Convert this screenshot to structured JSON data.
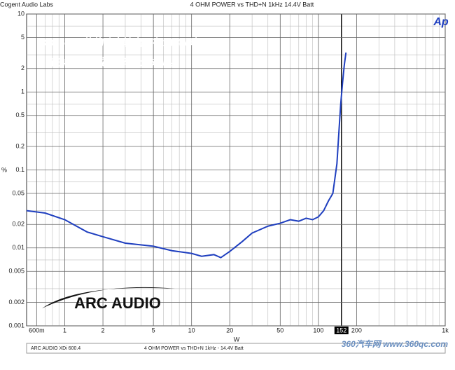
{
  "chart_data": {
    "type": "line",
    "log_scale": true,
    "grid": true,
    "header_left": "Cogent Audio Labs",
    "title": "4 OHM POWER vs THD+N  1kHz  14.4V Batt",
    "logo": "Ap",
    "ylabel": "%",
    "xlabel": "W",
    "annotations": [
      "XDi 600.4的的功率输出，在14.4V时",
      "，在4欧的状诚下，输出152W。"
    ],
    "brand": "ARC AUDIO",
    "footer": [
      "ARC AUDIO XDi 600.4",
      "4 OHM POWER  vs THD+N  1kHz - 14.4V Batt"
    ],
    "watermark": "360汽车网 www.360qc.com",
    "xlim": [
      0.5,
      1000
    ],
    "ylim": [
      0.001,
      10
    ],
    "xticks": [
      {
        "value": 0.6,
        "label": "600m"
      },
      1,
      2,
      5,
      10,
      20,
      50,
      100,
      152,
      200,
      {
        "value": 1000,
        "label": "1k"
      }
    ],
    "highlight_xtick": 152,
    "xminorticks": [
      0.7,
      0.8,
      0.9,
      3,
      4,
      6,
      7,
      8,
      9,
      30,
      40,
      60,
      70,
      80,
      90,
      300,
      400,
      500,
      600,
      700,
      800,
      900
    ],
    "yticks": [
      10,
      5,
      2,
      1,
      0.5,
      0.2,
      0.1,
      0.05,
      0.02,
      0.01,
      0.005,
      0.002,
      0.001
    ],
    "yminorticks": [
      7,
      3,
      0.7,
      0.3,
      0.07,
      0.03,
      0.007,
      0.003
    ],
    "x": [
      0.5,
      0.7,
      1,
      1.5,
      2,
      3,
      5,
      7,
      10,
      12,
      15,
      17,
      20,
      25,
      30,
      40,
      50,
      60,
      70,
      80,
      90,
      100,
      110,
      120,
      130,
      140,
      145,
      150,
      155,
      160,
      165
    ],
    "series": [
      {
        "name": "THD+N",
        "color": "#1f3fbf",
        "values": [
          0.03,
          0.028,
          0.023,
          0.016,
          0.0139,
          0.0115,
          0.0105,
          0.0092,
          0.0085,
          0.0078,
          0.0082,
          0.0075,
          0.009,
          0.012,
          0.0155,
          0.019,
          0.0207,
          0.023,
          0.022,
          0.024,
          0.023,
          0.025,
          0.03,
          0.04,
          0.05,
          0.12,
          0.3,
          0.7,
          1.3,
          2.2,
          3.2
        ]
      }
    ]
  }
}
